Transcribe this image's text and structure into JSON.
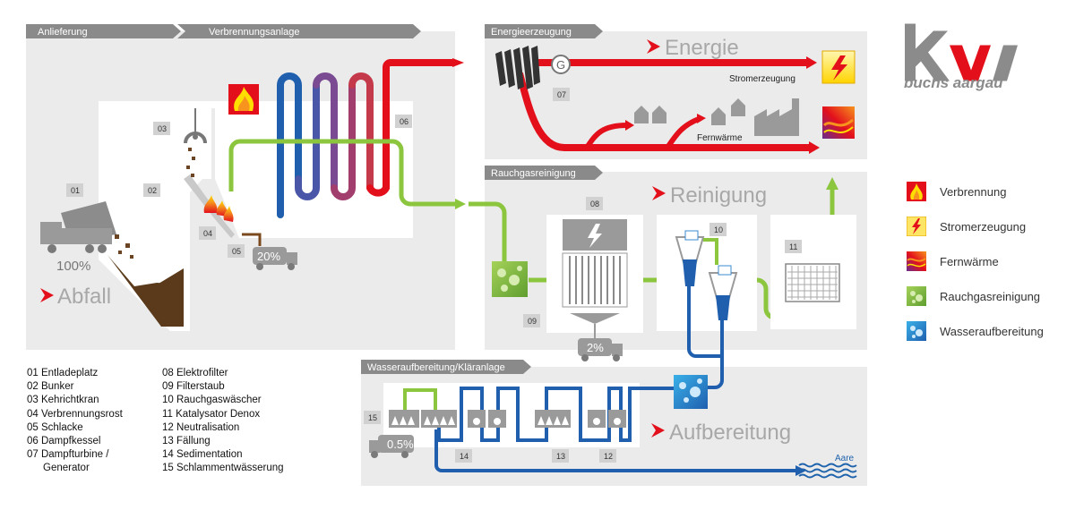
{
  "headers": {
    "anlieferung": "Anlieferung",
    "verbrennungsanlage": "Verbrennungsanlage",
    "energieerzeugung": "Energieerzeugung",
    "rauchgasreinigung": "Rauchgasreinigung",
    "wasseraufbereitung": "Wasseraufbereitung/Kläranlage"
  },
  "big_labels": {
    "abfall": "Abfall",
    "energie": "Energie",
    "reinigung": "Reinigung",
    "aufbereitung": "Aufbereitung"
  },
  "small_labels": {
    "stromerzeugung": "Stromerzeugung",
    "fernwaerme": "Fernwärme",
    "aare": "Aare",
    "generator": "G"
  },
  "percentages": {
    "abfall": "100%",
    "schlacke": "20%",
    "filterstaub": "2%",
    "schlamm": "0.5%"
  },
  "numbers": [
    "01",
    "02",
    "03",
    "04",
    "05",
    "06",
    "07",
    "08",
    "09",
    "10",
    "11",
    "12",
    "13",
    "14",
    "15"
  ],
  "legend_items": [
    "01 Entladeplatz",
    "02 Bunker",
    "03 Kehrichtkran",
    "04 Verbrennungsrost",
    "05 Schlacke",
    "06 Dampfkessel",
    "07 Dampfturbine /",
    "Generator",
    "08 Elektrofilter",
    "09 Filterstaub",
    "10 Rauchgaswäscher",
    "11 Katalysator Denox",
    "12 Neutralisation",
    "13 Fällung",
    "14 Sedimentation",
    "15 Schlammentwässerung"
  ],
  "side_legend": [
    {
      "label": "Verbrennung",
      "icon": "fire-icon"
    },
    {
      "label": "Stromerzeugung",
      "icon": "lightning-icon"
    },
    {
      "label": "Fernwärme",
      "icon": "heat-wave-icon"
    },
    {
      "label": "Rauchgasreinigung",
      "icon": "bubbles-green-icon"
    },
    {
      "label": "Wasseraufbereitung",
      "icon": "bubbles-blue-icon"
    }
  ],
  "logo": {
    "mark": "kva",
    "subtitle": "buchs aargau"
  },
  "colors": {
    "energy_red": "#e3101c",
    "gas_green": "#8cc63f",
    "water_blue": "#1f63ad",
    "panel_gray": "#ebebeb",
    "header_gray": "#8a8a8a",
    "big_text_gray": "#a8a8a8"
  }
}
